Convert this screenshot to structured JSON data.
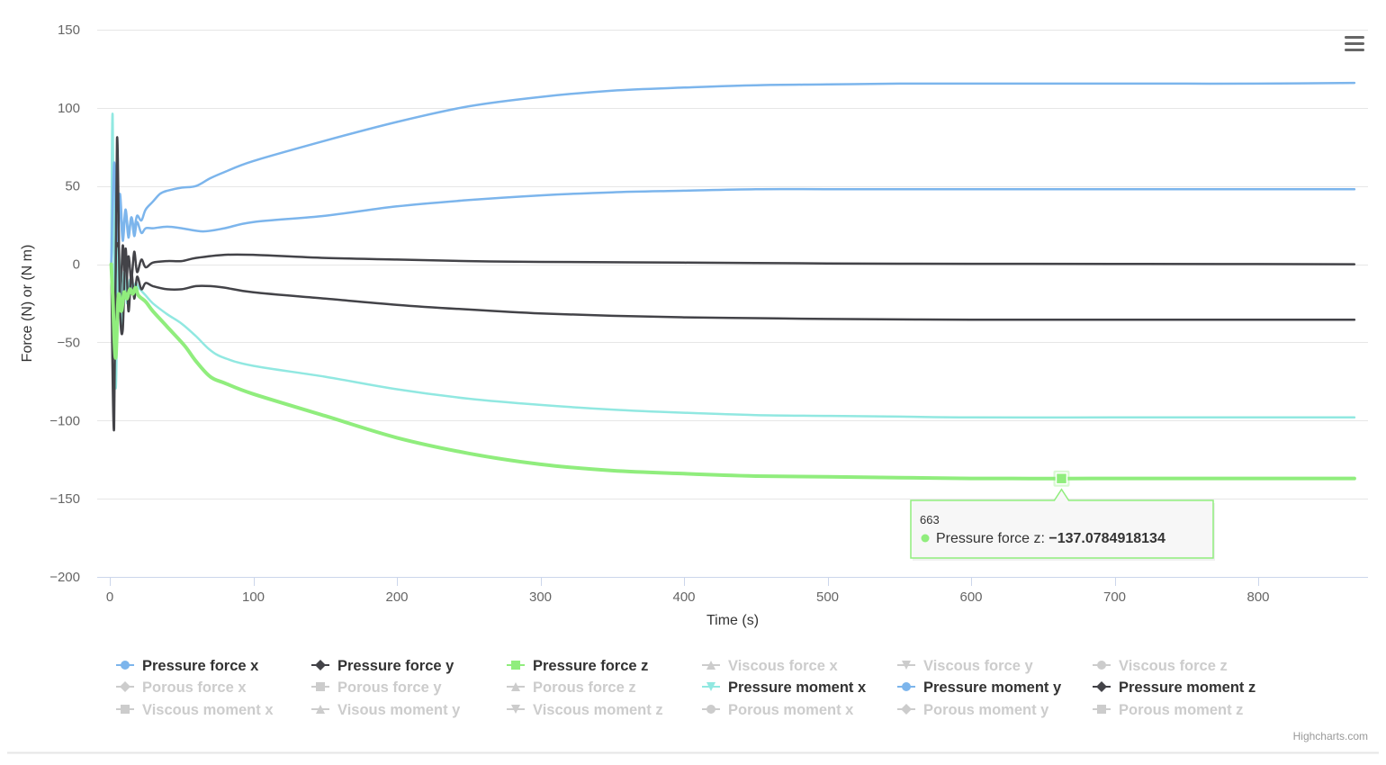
{
  "chart_data": {
    "type": "line",
    "xlabel": "Time (s)",
    "ylabel": "Force (N) or (N m)",
    "xlim": [
      -7,
      880
    ],
    "ylim": [
      -200,
      150
    ],
    "x_ticks": [
      0,
      100,
      200,
      300,
      400,
      500,
      600,
      700,
      800
    ],
    "y_ticks": [
      150,
      100,
      50,
      0,
      -50,
      -100,
      -150,
      -200
    ],
    "grid": "horizontal",
    "legend_placement": "bottom",
    "series": [
      {
        "name": "Pressure force x",
        "color": "#7cb5ec",
        "visible": true,
        "marker": "circle",
        "points": [
          [
            1,
            0
          ],
          [
            3,
            55
          ],
          [
            5,
            10
          ],
          [
            7,
            38
          ],
          [
            9,
            15
          ],
          [
            11,
            33
          ],
          [
            13,
            17
          ],
          [
            15,
            30
          ],
          [
            17,
            18
          ],
          [
            19,
            27
          ],
          [
            22,
            20
          ],
          [
            25,
            23
          ],
          [
            30,
            23
          ],
          [
            40,
            24
          ],
          [
            50,
            23
          ],
          [
            65,
            21
          ],
          [
            80,
            23
          ],
          [
            100,
            27
          ],
          [
            150,
            31
          ],
          [
            200,
            37
          ],
          [
            250,
            41
          ],
          [
            300,
            44
          ],
          [
            350,
            46
          ],
          [
            400,
            47
          ],
          [
            450,
            48
          ],
          [
            500,
            48
          ],
          [
            550,
            48
          ],
          [
            600,
            48
          ],
          [
            650,
            48
          ],
          [
            700,
            48
          ],
          [
            750,
            48
          ],
          [
            800,
            48
          ],
          [
            867,
            48
          ]
        ]
      },
      {
        "name": "Pressure force y",
        "color": "#434348",
        "visible": true,
        "marker": "diamond",
        "points": [
          [
            1,
            0
          ],
          [
            3,
            -60
          ],
          [
            5,
            25
          ],
          [
            7,
            -30
          ],
          [
            9,
            12
          ],
          [
            11,
            -18
          ],
          [
            13,
            5
          ],
          [
            15,
            -10
          ],
          [
            17,
            8
          ],
          [
            19,
            -5
          ],
          [
            22,
            3
          ],
          [
            25,
            -2
          ],
          [
            30,
            1
          ],
          [
            40,
            2
          ],
          [
            50,
            2
          ],
          [
            60,
            4
          ],
          [
            80,
            6
          ],
          [
            100,
            6
          ],
          [
            150,
            4
          ],
          [
            200,
            3
          ],
          [
            250,
            2
          ],
          [
            300,
            1.5
          ],
          [
            400,
            1
          ],
          [
            500,
            0.5
          ],
          [
            600,
            0.3
          ],
          [
            700,
            0.2
          ],
          [
            867,
            0
          ]
        ]
      },
      {
        "name": "Pressure force z",
        "color": "#90ed7d",
        "visible": true,
        "marker": "square",
        "points": [
          [
            1,
            0
          ],
          [
            2,
            -20
          ],
          [
            4,
            -60
          ],
          [
            6,
            -20
          ],
          [
            8,
            -30
          ],
          [
            10,
            -18
          ],
          [
            12,
            -22
          ],
          [
            14,
            -16
          ],
          [
            16,
            -19
          ],
          [
            18,
            -15
          ],
          [
            20,
            -20
          ],
          [
            25,
            -24
          ],
          [
            30,
            -30
          ],
          [
            40,
            -40
          ],
          [
            52,
            -52
          ],
          [
            60,
            -62
          ],
          [
            70,
            -72
          ],
          [
            80,
            -76
          ],
          [
            100,
            -83
          ],
          [
            150,
            -97
          ],
          [
            200,
            -111
          ],
          [
            250,
            -121
          ],
          [
            300,
            -128
          ],
          [
            350,
            -132
          ],
          [
            400,
            -134
          ],
          [
            450,
            -135.5
          ],
          [
            500,
            -136
          ],
          [
            550,
            -136.5
          ],
          [
            600,
            -137
          ],
          [
            663,
            -137.0784918134
          ],
          [
            700,
            -137
          ],
          [
            750,
            -137
          ],
          [
            800,
            -137
          ],
          [
            867,
            -137
          ]
        ]
      },
      {
        "name": "Viscous force x",
        "color": "#c8c8c8",
        "visible": false,
        "marker": "triangle",
        "points": []
      },
      {
        "name": "Viscous force y",
        "color": "#c8c8c8",
        "visible": false,
        "marker": "triangle-down",
        "points": []
      },
      {
        "name": "Viscous force z",
        "color": "#c8c8c8",
        "visible": false,
        "marker": "circle",
        "points": []
      },
      {
        "name": "Porous force x",
        "color": "#c8c8c8",
        "visible": false,
        "marker": "diamond",
        "points": []
      },
      {
        "name": "Porous force y",
        "color": "#c8c8c8",
        "visible": false,
        "marker": "square",
        "points": []
      },
      {
        "name": "Porous force z",
        "color": "#c8c8c8",
        "visible": false,
        "marker": "triangle",
        "points": []
      },
      {
        "name": "Pressure moment x",
        "color": "#91e8e1",
        "visible": true,
        "marker": "triangle-down",
        "points": [
          [
            1,
            0
          ],
          [
            2,
            95
          ],
          [
            4,
            -78
          ],
          [
            6,
            10
          ],
          [
            8,
            -40
          ],
          [
            10,
            -5
          ],
          [
            12,
            -25
          ],
          [
            14,
            -10
          ],
          [
            16,
            -18
          ],
          [
            18,
            -12
          ],
          [
            20,
            -15
          ],
          [
            25,
            -20
          ],
          [
            30,
            -25
          ],
          [
            40,
            -32
          ],
          [
            50,
            -38
          ],
          [
            60,
            -46
          ],
          [
            70,
            -55
          ],
          [
            80,
            -60
          ],
          [
            100,
            -65
          ],
          [
            150,
            -72
          ],
          [
            200,
            -80
          ],
          [
            250,
            -86
          ],
          [
            300,
            -90
          ],
          [
            350,
            -93
          ],
          [
            400,
            -95
          ],
          [
            450,
            -96.5
          ],
          [
            500,
            -97
          ],
          [
            550,
            -97.5
          ],
          [
            600,
            -98
          ],
          [
            700,
            -98
          ],
          [
            800,
            -98
          ],
          [
            867,
            -98
          ]
        ]
      },
      {
        "name": "Pressure moment y",
        "color": "#7cb5ec",
        "visible": true,
        "marker": "circle",
        "points": [
          [
            1,
            0
          ],
          [
            3,
            65
          ],
          [
            5,
            15
          ],
          [
            7,
            45
          ],
          [
            9,
            20
          ],
          [
            11,
            35
          ],
          [
            13,
            20
          ],
          [
            15,
            30
          ],
          [
            17,
            23
          ],
          [
            19,
            31
          ],
          [
            22,
            28
          ],
          [
            25,
            35
          ],
          [
            30,
            40
          ],
          [
            35,
            45
          ],
          [
            40,
            47
          ],
          [
            50,
            49
          ],
          [
            60,
            50
          ],
          [
            70,
            55
          ],
          [
            80,
            59
          ],
          [
            100,
            66
          ],
          [
            150,
            79
          ],
          [
            200,
            91
          ],
          [
            250,
            101
          ],
          [
            300,
            107
          ],
          [
            350,
            111
          ],
          [
            400,
            113
          ],
          [
            450,
            114.5
          ],
          [
            500,
            115
          ],
          [
            550,
            115.5
          ],
          [
            600,
            115.5
          ],
          [
            650,
            115.5
          ],
          [
            700,
            115.5
          ],
          [
            750,
            115.5
          ],
          [
            800,
            115.5
          ],
          [
            867,
            116
          ]
        ]
      },
      {
        "name": "Pressure moment z",
        "color": "#434348",
        "visible": true,
        "marker": "diamond",
        "points": [
          [
            1,
            0
          ],
          [
            3,
            -105
          ],
          [
            5,
            80
          ],
          [
            7,
            -25
          ],
          [
            9,
            -42
          ],
          [
            11,
            10
          ],
          [
            13,
            -30
          ],
          [
            15,
            -5
          ],
          [
            17,
            -22
          ],
          [
            19,
            -8
          ],
          [
            22,
            -16
          ],
          [
            25,
            -12
          ],
          [
            30,
            -14
          ],
          [
            40,
            -16
          ],
          [
            50,
            -16
          ],
          [
            60,
            -14
          ],
          [
            70,
            -14
          ],
          [
            80,
            -15
          ],
          [
            100,
            -18
          ],
          [
            150,
            -22
          ],
          [
            200,
            -26
          ],
          [
            250,
            -29
          ],
          [
            300,
            -31.5
          ],
          [
            350,
            -33
          ],
          [
            400,
            -34
          ],
          [
            450,
            -34.5
          ],
          [
            500,
            -35
          ],
          [
            600,
            -35.5
          ],
          [
            700,
            -35.5
          ],
          [
            800,
            -35.5
          ],
          [
            867,
            -35.5
          ]
        ]
      },
      {
        "name": "Viscous moment x",
        "color": "#c8c8c8",
        "visible": false,
        "marker": "square",
        "points": []
      },
      {
        "name": "Visous moment y",
        "color": "#c8c8c8",
        "visible": false,
        "marker": "triangle",
        "points": []
      },
      {
        "name": "Viscous moment z",
        "color": "#c8c8c8",
        "visible": false,
        "marker": "triangle-down",
        "points": []
      },
      {
        "name": "Porous moment x",
        "color": "#c8c8c8",
        "visible": false,
        "marker": "circle",
        "points": []
      },
      {
        "name": "Porous moment y",
        "color": "#c8c8c8",
        "visible": false,
        "marker": "diamond",
        "points": []
      },
      {
        "name": "Porous moment z",
        "color": "#c8c8c8",
        "visible": false,
        "marker": "square",
        "points": []
      }
    ],
    "tooltip": {
      "x": "663",
      "series_name": "Pressure force z",
      "label": "Pressure force z: ",
      "value": "−137.0784918134",
      "point": [
        663,
        -137.0784918134
      ],
      "color": "#90ed7d"
    }
  },
  "credits": "Highcharts.com",
  "menu_icon": "hamburger-menu-icon",
  "colors": {
    "grid": "#e6e6e6",
    "axis_line": "#ccd6eb",
    "hidden_legend": "#cccccc",
    "legend_text": "#333333"
  }
}
